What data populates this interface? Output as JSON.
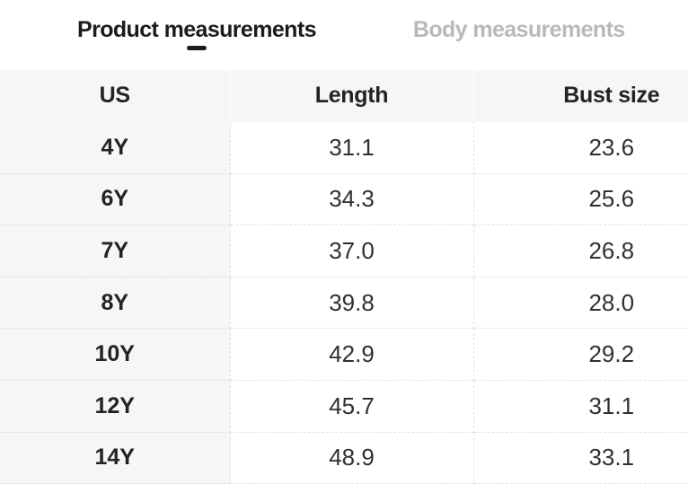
{
  "tabs": {
    "product": {
      "label": "Product measurements",
      "active": true
    },
    "body": {
      "label": "Body measurements",
      "active": false
    }
  },
  "table": {
    "columns": [
      "US",
      "Length",
      "Bust size"
    ],
    "rows": [
      [
        "4Y",
        "31.1",
        "23.6"
      ],
      [
        "6Y",
        "34.3",
        "25.6"
      ],
      [
        "7Y",
        "37.0",
        "26.8"
      ],
      [
        "8Y",
        "39.8",
        "28.0"
      ],
      [
        "10Y",
        "42.9",
        "29.2"
      ],
      [
        "12Y",
        "45.7",
        "31.1"
      ],
      [
        "14Y",
        "48.9",
        "33.1"
      ]
    ]
  },
  "colors": {
    "active_tab_text": "#1c1c1c",
    "inactive_tab_text": "#b9b9b9",
    "tab_indicator": "#1c1c1c",
    "header_background": "#f6f6f6",
    "row_separator": "#e0e0e0",
    "cell_text": "#303030"
  }
}
